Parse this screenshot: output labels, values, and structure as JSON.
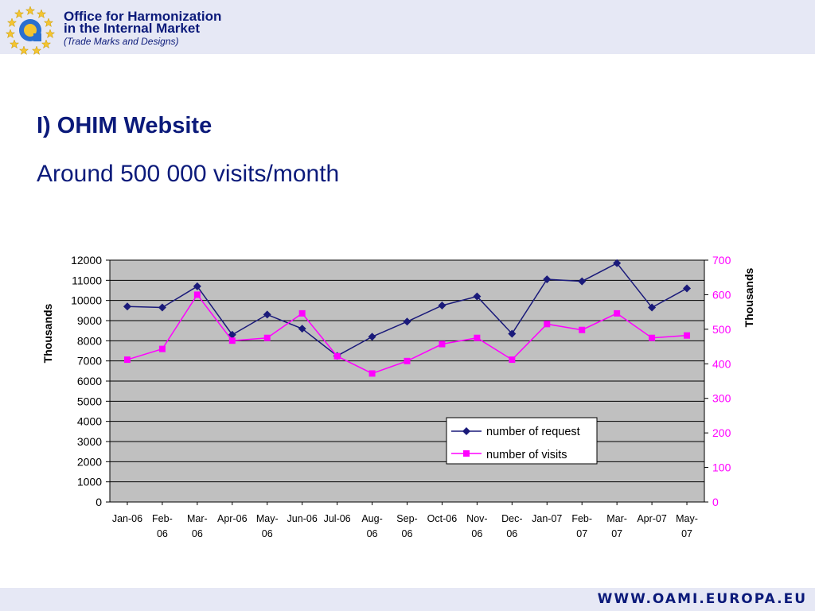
{
  "header": {
    "org_line1": "Office for Harmonization",
    "org_line2": "in the Internal Market",
    "org_sub": "(Trade Marks and Designs)"
  },
  "slide": {
    "title": "I) OHIM Website",
    "subtitle": "Around 500 000 visits/month"
  },
  "footer": {
    "url": "WWW.OAMI.EUROPA.EU"
  },
  "colors": {
    "request_series": "#1a1a7a",
    "visits_series": "#ff00ff",
    "plot_bg": "#c0c0c0",
    "brand": "#0b1a7a"
  },
  "chart_data": {
    "type": "line",
    "categories": [
      "Jan-06",
      "Feb-06",
      "Mar-06",
      "Apr-06",
      "May-06",
      "Jun-06",
      "Jul-06",
      "Aug-06",
      "Sep-06",
      "Oct-06",
      "Nov-06",
      "Dec-06",
      "Jan-07",
      "Feb-07",
      "Mar-07",
      "Apr-07",
      "May-07"
    ],
    "category_label_lines": [
      [
        "Jan-06"
      ],
      [
        "Feb-",
        "06"
      ],
      [
        "Mar-",
        "06"
      ],
      [
        "Apr-06"
      ],
      [
        "May-",
        "06"
      ],
      [
        "Jun-06"
      ],
      [
        "Jul-06"
      ],
      [
        "Aug-",
        "06"
      ],
      [
        "Sep-",
        "06"
      ],
      [
        "Oct-06"
      ],
      [
        "Nov-",
        "06"
      ],
      [
        "Dec-",
        "06"
      ],
      [
        "Jan-07"
      ],
      [
        "Feb-",
        "07"
      ],
      [
        "Mar-",
        "07"
      ],
      [
        "Apr-07"
      ],
      [
        "May-",
        "07"
      ]
    ],
    "series": [
      {
        "name": "number of request",
        "axis": "left",
        "marker": "diamond",
        "values": [
          9700,
          9650,
          10700,
          8300,
          9300,
          8600,
          7250,
          8200,
          8950,
          9750,
          10200,
          8350,
          11050,
          10950,
          11850,
          9650,
          10600
        ]
      },
      {
        "name": "number of visits",
        "axis": "right",
        "marker": "square",
        "values": [
          412,
          443,
          600,
          467,
          475,
          546,
          422,
          372,
          408,
          457,
          475,
          412,
          515,
          498,
          546,
          475,
          482
        ]
      }
    ],
    "ylabel_left": "Thousands",
    "ylabel_right": "Thousands",
    "ylim_left": [
      0,
      12000
    ],
    "ylim_right": [
      0,
      700
    ],
    "yticks_left": [
      0,
      1000,
      2000,
      3000,
      4000,
      5000,
      6000,
      7000,
      8000,
      9000,
      10000,
      11000,
      12000
    ],
    "yticks_right": [
      0,
      100,
      200,
      300,
      400,
      500,
      600,
      700
    ],
    "grid": true,
    "legend_position": "lower-right-inside"
  }
}
